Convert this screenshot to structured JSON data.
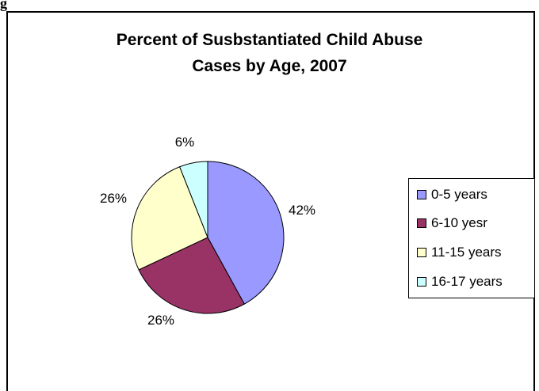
{
  "corner_text": "g",
  "chart_data": {
    "type": "pie",
    "title_lines": [
      "Percent of Susbstantiated Child Abuse",
      "Cases by Age, 2007"
    ],
    "categories": [
      "0-5 years",
      "6-10 yesr",
      "11-15 years",
      "16-17 years"
    ],
    "values": [
      42,
      26,
      26,
      6
    ],
    "labels": [
      "42%",
      "26%",
      "26%",
      "6%"
    ],
    "colors": [
      "#9999ff",
      "#993366",
      "#ffffcc",
      "#ccffff"
    ],
    "legend_position": "right"
  }
}
